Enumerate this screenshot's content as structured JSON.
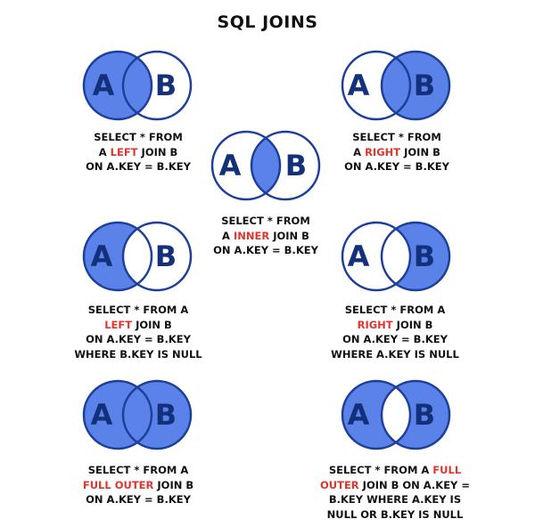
{
  "title": "SQL JOINS",
  "colors": {
    "fill": "#5b82e8",
    "stroke": "#1d3f9c",
    "highlight": "#e0342c"
  },
  "joins": [
    {
      "id": "left",
      "set_a": "A",
      "set_b": "B",
      "filled": "left",
      "query": {
        "line1_pre": "SELECT * FROM",
        "line2_pre": "A ",
        "keyword": "LEFT",
        "line2_post": " JOIN B",
        "line3": "ON A.KEY = B.KEY",
        "line4": ""
      }
    },
    {
      "id": "right",
      "set_a": "A",
      "set_b": "B",
      "filled": "right",
      "query": {
        "line1_pre": "SELECT * FROM",
        "line2_pre": "A ",
        "keyword": "RIGHT",
        "line2_post": " JOIN B",
        "line3": "ON A.KEY = B.KEY",
        "line4": ""
      }
    },
    {
      "id": "inner",
      "set_a": "A",
      "set_b": "B",
      "filled": "intersection",
      "query": {
        "line1_pre": "SELECT * FROM",
        "line2_pre": "A ",
        "keyword": "INNER",
        "line2_post": " JOIN B",
        "line3": "ON A.KEY = B.KEY",
        "line4": ""
      }
    },
    {
      "id": "left-excluding",
      "set_a": "A",
      "set_b": "B",
      "filled": "left-only",
      "query": {
        "line1_pre": "SELECT * FROM A",
        "line2_pre": "",
        "keyword": "LEFT",
        "line2_post": " JOIN B",
        "line3": "ON A.KEY = B.KEY",
        "line4": "WHERE B.KEY IS NULL"
      }
    },
    {
      "id": "right-excluding",
      "set_a": "A",
      "set_b": "B",
      "filled": "right-only",
      "query": {
        "line1_pre": "SELECT * FROM A",
        "line2_pre": "",
        "keyword": "RIGHT",
        "line2_post": " JOIN B",
        "line3": "ON A.KEY = B.KEY",
        "line4": "WHERE A.KEY IS NULL"
      }
    },
    {
      "id": "full-outer",
      "set_a": "A",
      "set_b": "B",
      "filled": "both",
      "query": {
        "line1_pre": "SELECT * FROM A",
        "line2_pre": "",
        "keyword": "FULL OUTER",
        "line2_post": " JOIN B",
        "line3": "ON A.KEY = B.KEY",
        "line4": ""
      }
    },
    {
      "id": "full-outer-excluding",
      "set_a": "A",
      "set_b": "B",
      "filled": "both-excluding-intersection",
      "query": {
        "line1_pre": "SELECT * FROM A ",
        "keyword1": "FULL",
        "line2_keyword": "OUTER",
        "line2_post": " JOIN B ON A.KEY =",
        "line3": "B.KEY WHERE A.KEY IS",
        "line4": "NULL OR B.KEY IS NULL"
      }
    }
  ]
}
